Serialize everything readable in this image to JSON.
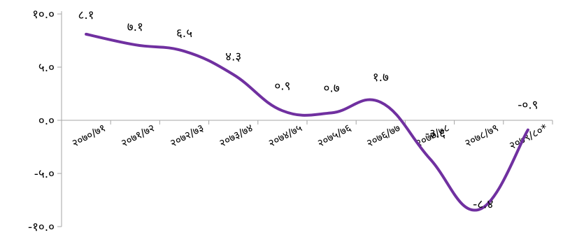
{
  "chart_data": {
    "type": "line",
    "title": "",
    "xlabel": "",
    "ylabel": "",
    "categories": [
      "२०७०/७१",
      "२०७१/७२",
      "२०७२/७३",
      "२०७३/७४",
      "२०७४/७५",
      "२०७५/७६",
      "२०७६/७७",
      "२०७७/७८",
      "२०७८/७९",
      "२०७९/८०*"
    ],
    "values": [
      8.1,
      7.1,
      6.5,
      4.3,
      0.9,
      0.7,
      1.7,
      -3.6,
      -8.4,
      -0.9
    ],
    "value_labels": [
      "८.१",
      "७.१",
      "६.५",
      "४.३",
      "०.९",
      "०.७",
      "१.७",
      "-३.६",
      "-८.४",
      "-०.९"
    ],
    "ylim": [
      -10,
      10
    ],
    "yticks": [
      10,
      5,
      0,
      -5,
      -10
    ],
    "ytick_labels": [
      "१०.०",
      "५.०",
      "०.०",
      "-५.०",
      "-१०.०"
    ],
    "line_style": "smooth",
    "grid": false,
    "legend": "none",
    "colors": {
      "line": "#7030A0",
      "axis": "#A6A6A6",
      "text": "#000000"
    }
  }
}
